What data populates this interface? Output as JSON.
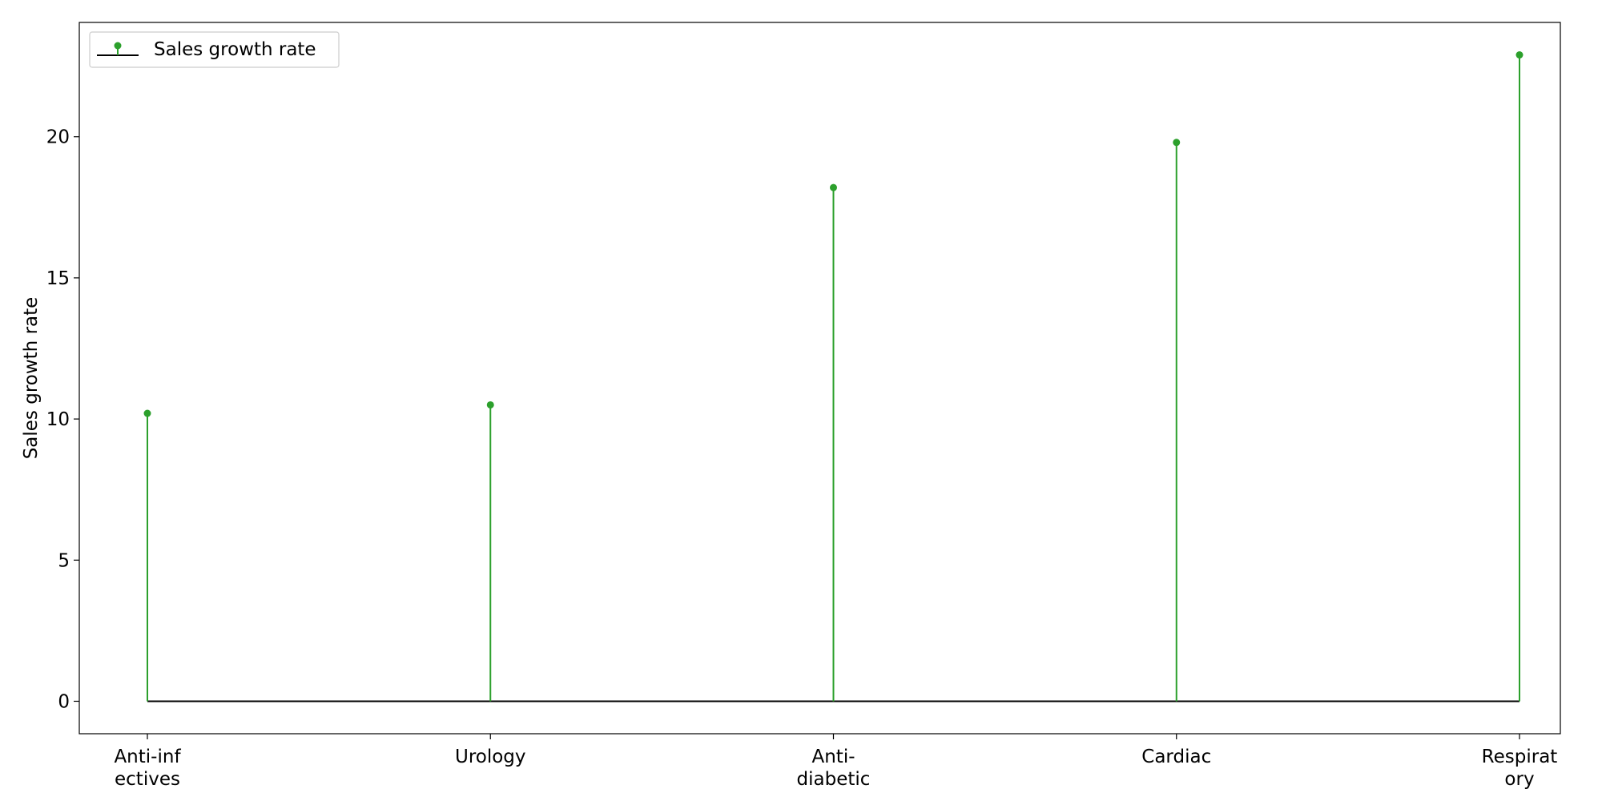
{
  "chart_data": {
    "type": "stem",
    "categories": [
      "Anti-infectives",
      "Urology",
      "Anti-diabetic",
      "Cardiac",
      "Respiratory"
    ],
    "category_tick_labels": [
      [
        "Anti-inf",
        "ectives"
      ],
      [
        "Urology"
      ],
      [
        "Anti-",
        "diabetic"
      ],
      [
        "Cardiac"
      ],
      [
        "Respirat",
        "ory"
      ]
    ],
    "series": [
      {
        "name": "Sales growth rate",
        "values": [
          10.2,
          10.5,
          18.2,
          19.8,
          22.9
        ]
      }
    ],
    "ylabel": "Sales growth rate",
    "xlabel": "",
    "title": "",
    "ylim": [
      -1.15,
      24.05
    ],
    "yticks": [
      0,
      5,
      10,
      15,
      20
    ],
    "baseline": 0,
    "grid": false,
    "legend": {
      "position": "top-left",
      "label": "Sales growth rate"
    },
    "colors": {
      "stem": "#2ca02c",
      "baseline": "#000000"
    }
  }
}
